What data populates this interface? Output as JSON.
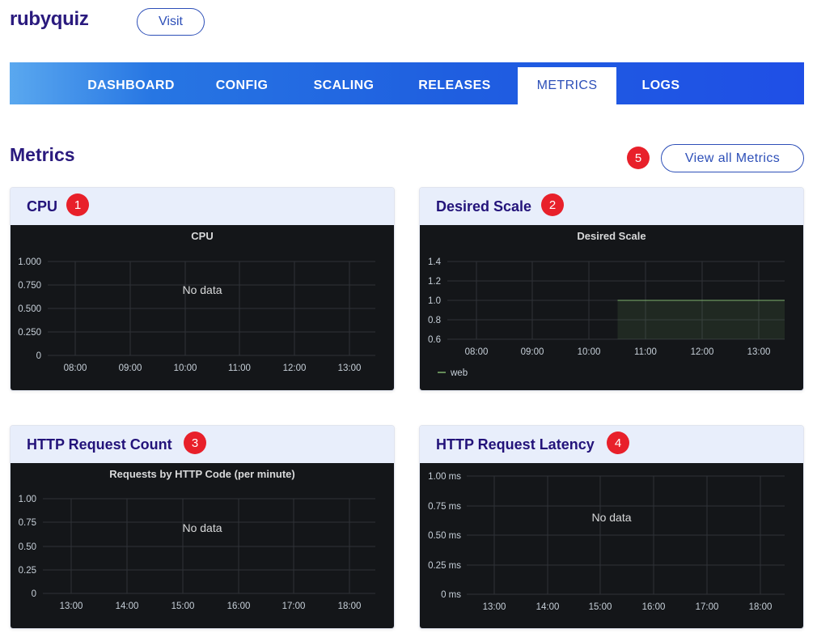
{
  "app": {
    "name": "rubyquiz",
    "visit_label": "Visit"
  },
  "nav": {
    "tabs": [
      {
        "label": "DASHBOARD",
        "active": false
      },
      {
        "label": "CONFIG",
        "active": false
      },
      {
        "label": "SCALING",
        "active": false
      },
      {
        "label": "RELEASES",
        "active": false
      },
      {
        "label": "METRICS",
        "active": true
      },
      {
        "label": "LOGS",
        "active": false
      }
    ]
  },
  "page": {
    "title": "Metrics",
    "view_all_label": "View all Metrics",
    "view_all_badge": "5"
  },
  "cards": [
    {
      "title": "CPU",
      "badge": "1"
    },
    {
      "title": "Desired Scale",
      "badge": "2"
    },
    {
      "title": "HTTP Request Count",
      "badge": "3"
    },
    {
      "title": "HTTP Request Latency",
      "badge": "4"
    }
  ],
  "colors": {
    "brand": "#2a1a7e",
    "accent": "#2d4fb8",
    "badge": "#e8202a",
    "panel_bg": "#141619",
    "series_web": "#7eb26d"
  },
  "chart_data": [
    {
      "type": "line",
      "title": "CPU",
      "x": [
        "08:00",
        "09:00",
        "10:00",
        "11:00",
        "12:00",
        "13:00"
      ],
      "y_ticks": [
        "1.000",
        "0.750",
        "0.500",
        "0.250",
        "0"
      ],
      "ylim": [
        0,
        1
      ],
      "series": [],
      "no_data_label": "No data",
      "grid": true
    },
    {
      "type": "area",
      "title": "Desired Scale",
      "x": [
        "08:00",
        "09:00",
        "10:00",
        "11:00",
        "12:00",
        "13:00"
      ],
      "y_ticks": [
        "1.4",
        "1.2",
        "1.0",
        "0.8",
        "0.6"
      ],
      "ylim": [
        0.6,
        1.4
      ],
      "series": [
        {
          "name": "web",
          "points": [
            {
              "x": "10:30",
              "y": 1.0
            },
            {
              "x": "13:30",
              "y": 1.0
            }
          ]
        }
      ],
      "legend": "bottom-left",
      "grid": true
    },
    {
      "type": "line",
      "title": "Requests by HTTP Code (per minute)",
      "x": [
        "13:00",
        "14:00",
        "15:00",
        "16:00",
        "17:00",
        "18:00"
      ],
      "y_ticks": [
        "1.00",
        "0.75",
        "0.50",
        "0.25",
        "0"
      ],
      "ylim": [
        0,
        1
      ],
      "series": [],
      "no_data_label": "No data",
      "grid": true
    },
    {
      "type": "line",
      "title": "",
      "x": [
        "13:00",
        "14:00",
        "15:00",
        "16:00",
        "17:00",
        "18:00"
      ],
      "y_ticks": [
        "1.00 ms",
        "0.75 ms",
        "0.50 ms",
        "0.25 ms",
        "0 ms"
      ],
      "ylim": [
        0,
        1
      ],
      "series": [],
      "no_data_label": "No data",
      "grid": true
    }
  ]
}
